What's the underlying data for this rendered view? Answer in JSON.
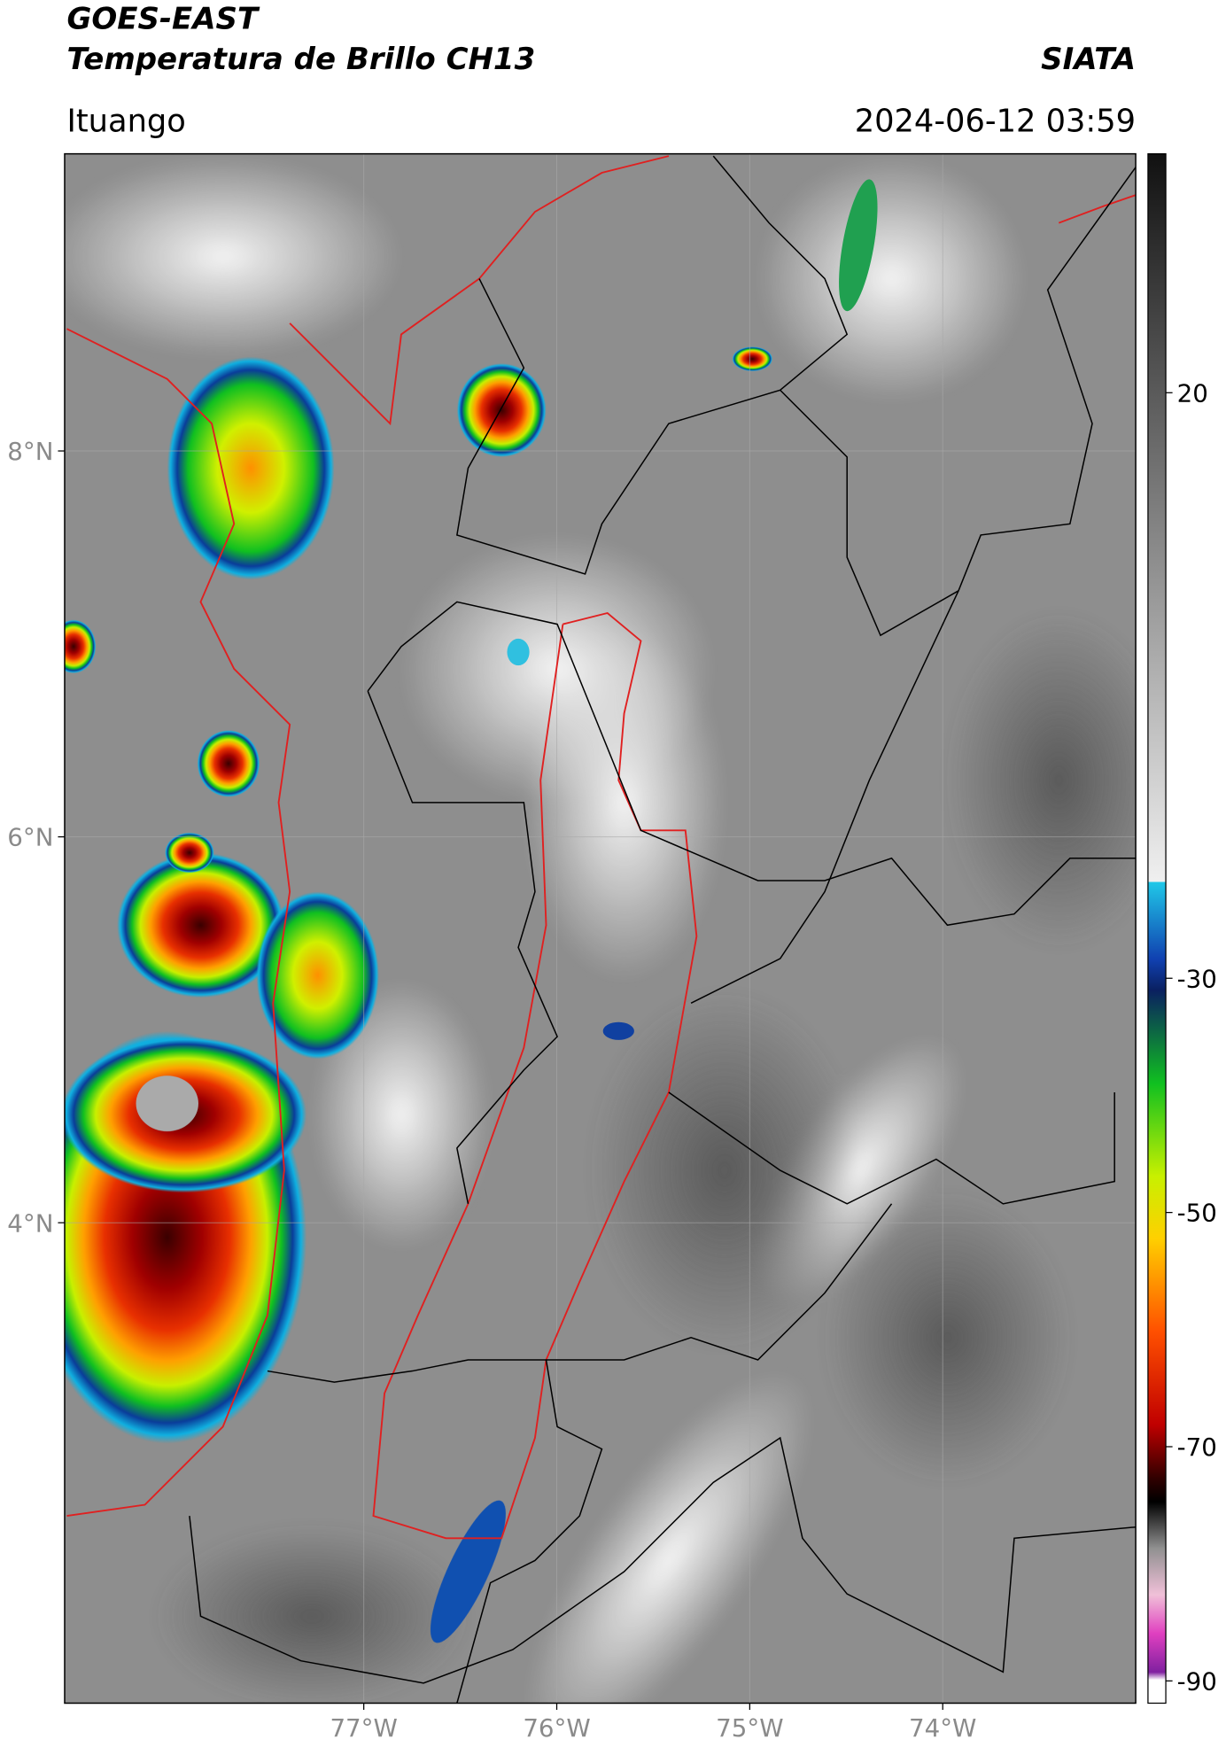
{
  "header": {
    "title_line1": "GOES-EAST",
    "title_line2": "Temperatura de Brillo CH13",
    "organization": "SIATA",
    "location": "Ituango",
    "timestamp": "2024-06-12 03:59"
  },
  "map": {
    "xlim": [
      -78.55,
      -73.0
    ],
    "ylim": [
      1.51,
      9.54
    ],
    "xticks": [
      {
        "value": -77,
        "label": "77°W"
      },
      {
        "value": -76,
        "label": "76°W"
      },
      {
        "value": -75,
        "label": "75°W"
      },
      {
        "value": -74,
        "label": "74°W"
      }
    ],
    "yticks": [
      {
        "value": 8,
        "label": "8°N"
      },
      {
        "value": 6,
        "label": "6°N"
      },
      {
        "value": 4,
        "label": "4°N"
      }
    ],
    "grid": true
  },
  "colorbar": {
    "clim": [
      -91.9,
      40.4
    ],
    "ticks": [
      20,
      -30,
      -50,
      -70,
      -90
    ]
  }
}
